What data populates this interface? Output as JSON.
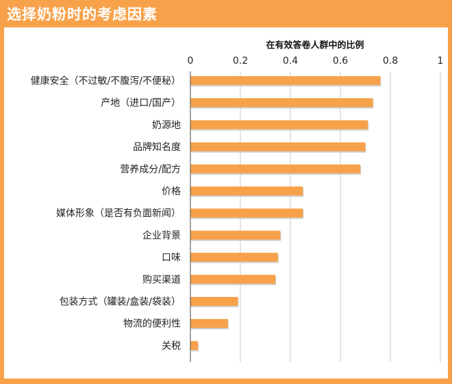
{
  "header": {
    "title": "选择奶粉时的考虑因素"
  },
  "chart_data": {
    "type": "bar",
    "orientation": "horizontal",
    "subtitle": "在有效答卷人群中的比例",
    "xlim": [
      0,
      1
    ],
    "ticks": [
      0,
      0.2,
      0.4,
      0.6,
      0.8,
      1
    ],
    "tick_labels": [
      "0",
      "0.2",
      "0.4",
      "0.6",
      "0.8",
      "1"
    ],
    "axis_position": "top",
    "grid": true,
    "bar_color": "#f7a24b",
    "categories": [
      "健康安全（不过敏/不腹泻/不便秘）",
      "产地（进口/国产）",
      "奶源地",
      "品牌知名度",
      "营养成分/配方",
      "价格",
      "媒体形象（是否有负面新闻）",
      "企业背景",
      "口味",
      "购买渠道",
      "包装方式（罐装/盒装/袋装）",
      "物流的便利性",
      "关税"
    ],
    "values": [
      0.76,
      0.73,
      0.71,
      0.7,
      0.68,
      0.45,
      0.45,
      0.36,
      0.35,
      0.34,
      0.19,
      0.15,
      0.03
    ]
  }
}
